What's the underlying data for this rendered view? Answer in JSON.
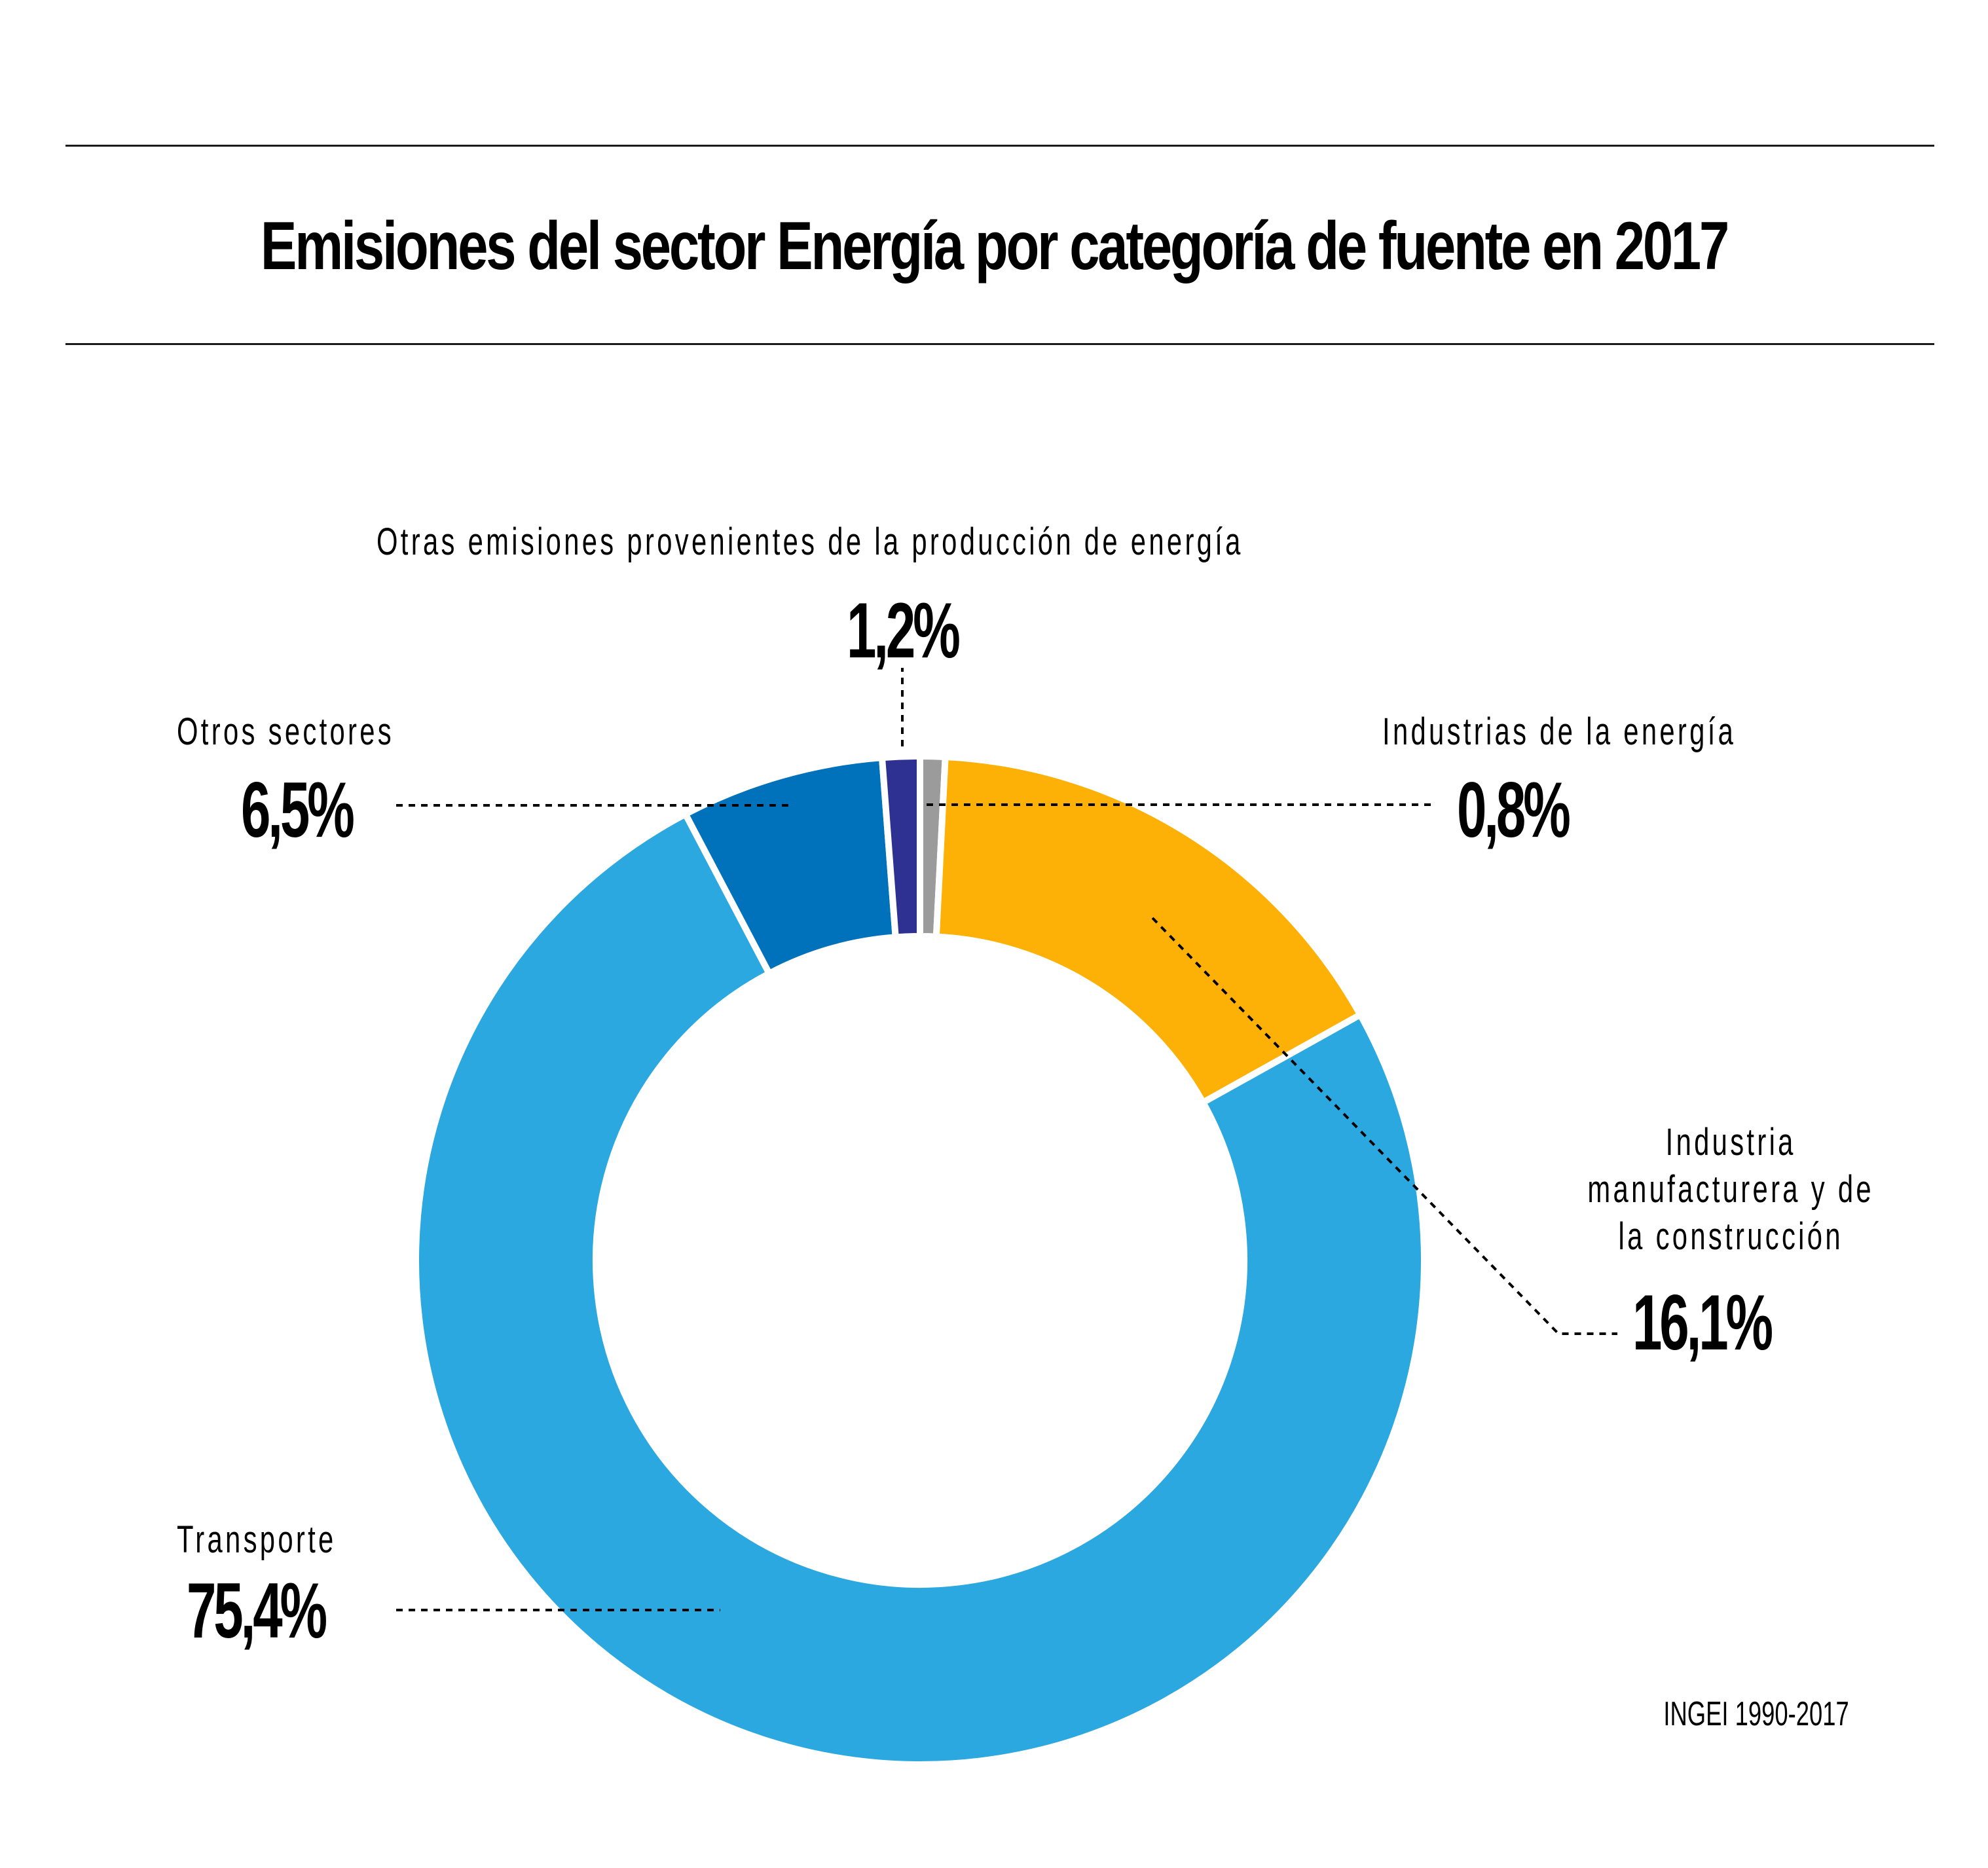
{
  "title": "Emisiones del sector Energía por categoría de fuente en 2017",
  "source": "INGEI 1990-2017",
  "chart_data": {
    "type": "pie",
    "variant": "donut",
    "title": "Emisiones del sector Energía por categoría de fuente en 2017",
    "unit": "%",
    "start": "top",
    "direction": "clockwise",
    "slices": [
      {
        "label": "Industrias de la energía",
        "value": 0.8,
        "display": "0,8%",
        "color": "#9b9b9b"
      },
      {
        "label": "Industria manufacturera y de la construcción",
        "value": 16.1,
        "display": "16,1%",
        "color": "#fdb005"
      },
      {
        "label": "Transporte",
        "value": 75.4,
        "display": "75,4%",
        "color": "#2ba8df"
      },
      {
        "label": "Otros sectores",
        "value": 6.5,
        "display": "6,5%",
        "color": "#0071bb"
      },
      {
        "label": "Otras emisiones provenientes de la producción de energía",
        "value": 1.2,
        "display": "1,2%",
        "color": "#2e3191"
      }
    ],
    "label_lines": {
      "industria_line1": "Industria",
      "industria_line2": "manufacturera y de",
      "industria_line3": "la construcción"
    },
    "source": "INGEI 1990-2017"
  }
}
